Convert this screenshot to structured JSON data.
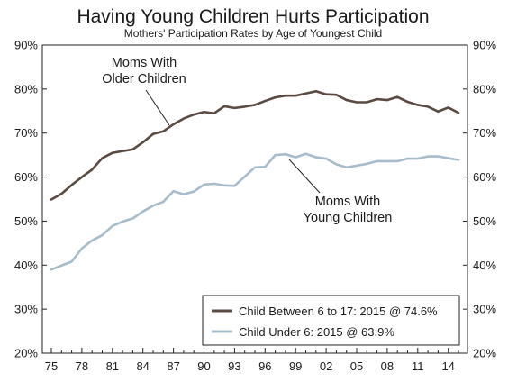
{
  "chart_data": {
    "type": "line",
    "title": "Having Young Children Hurts Participation",
    "subtitle": "Mothers' Participation Rates by Age of Youngest Child",
    "ylim": [
      20,
      90
    ],
    "yticks": [
      "20%",
      "30%",
      "40%",
      "50%",
      "60%",
      "70%",
      "80%",
      "90%"
    ],
    "ytick_values": [
      20,
      30,
      40,
      50,
      60,
      70,
      80,
      90
    ],
    "xlim": [
      1975,
      2015
    ],
    "xticks": [
      "75",
      "78",
      "81",
      "84",
      "87",
      "90",
      "93",
      "96",
      "99",
      "02",
      "05",
      "08",
      "11",
      "14"
    ],
    "xtick_values": [
      1975,
      1978,
      1981,
      1984,
      1987,
      1990,
      1993,
      1996,
      1999,
      2002,
      2005,
      2008,
      2011,
      2014
    ],
    "grid": false,
    "legend_position": "bottom-right",
    "x": [
      1975,
      1976,
      1977,
      1978,
      1979,
      1980,
      1981,
      1982,
      1983,
      1984,
      1985,
      1986,
      1987,
      1988,
      1989,
      1990,
      1991,
      1992,
      1993,
      1994,
      1995,
      1996,
      1997,
      1998,
      1999,
      2000,
      2001,
      2002,
      2003,
      2004,
      2005,
      2006,
      2007,
      2008,
      2009,
      2010,
      2011,
      2012,
      2013,
      2014,
      2015
    ],
    "series": [
      {
        "name": "Child Between 6 to 17: 2015 @ 74.6%",
        "color": "#5a4a42",
        "values": [
          54.9,
          56.2,
          58.2,
          60.0,
          61.7,
          64.3,
          65.5,
          65.9,
          66.3,
          67.9,
          69.8,
          70.4,
          72.0,
          73.3,
          74.2,
          74.8,
          74.5,
          76.1,
          75.7,
          76.0,
          76.4,
          77.3,
          78.1,
          78.5,
          78.5,
          79.0,
          79.5,
          78.8,
          78.7,
          77.5,
          77.0,
          77.0,
          77.7,
          77.5,
          78.2,
          77.1,
          76.4,
          76.0,
          74.9,
          75.8,
          74.6
        ]
      },
      {
        "name": "Child Under 6: 2015 @ 63.9%",
        "color": "#a7bccb",
        "values": [
          39.0,
          39.9,
          40.8,
          43.8,
          45.6,
          46.8,
          48.9,
          49.9,
          50.6,
          52.2,
          53.5,
          54.4,
          56.8,
          56.1,
          56.7,
          58.3,
          58.5,
          58.1,
          58.0,
          60.1,
          62.2,
          62.3,
          65.0,
          65.2,
          64.5,
          65.3,
          64.5,
          64.2,
          62.9,
          62.2,
          62.6,
          63.0,
          63.6,
          63.6,
          63.6,
          64.2,
          64.2,
          64.7,
          64.7,
          64.3,
          63.9
        ]
      }
    ],
    "annotations": {
      "older_line1": "Moms With",
      "older_line2": "Older Children",
      "young_line1": "Moms With",
      "young_line2": "Young Children"
    }
  }
}
